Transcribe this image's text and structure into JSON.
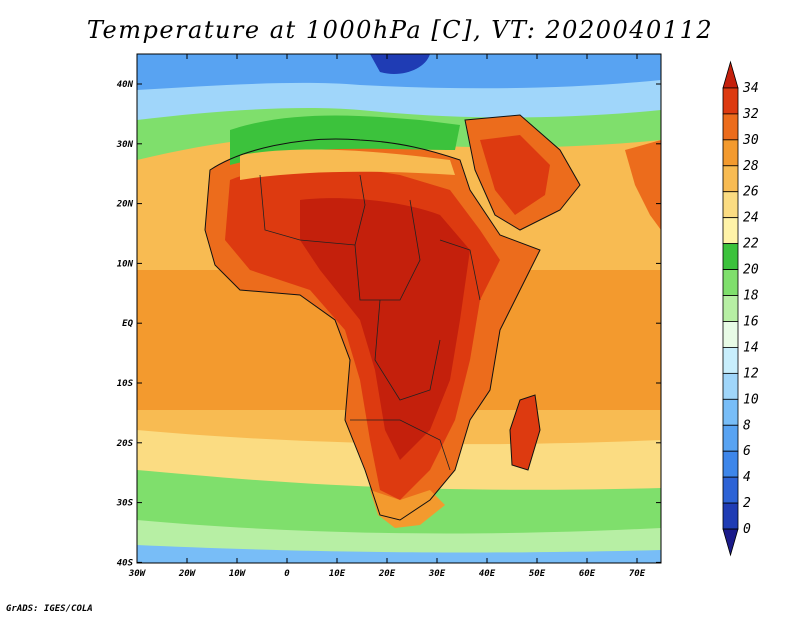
{
  "title": "Temperature at 1000hPa [C], VT: 2020040112",
  "credit": "GrADS: IGES/COLA",
  "map": {
    "lat_labels": [
      "40N",
      "30N",
      "20N",
      "10N",
      "EQ",
      "10S",
      "20S",
      "30S",
      "40S"
    ],
    "lon_labels": [
      "30W",
      "20W",
      "10W",
      "0",
      "10E",
      "20E",
      "30E",
      "40E",
      "50E",
      "60E",
      "70E"
    ]
  },
  "colorbar": {
    "levels": [
      "0",
      "2",
      "4",
      "6",
      "8",
      "10",
      "12",
      "14",
      "16",
      "18",
      "20",
      "22",
      "24",
      "26",
      "28",
      "30",
      "32",
      "34"
    ],
    "colors": [
      "#1b1b8a",
      "#1f3cb4",
      "#2d63d6",
      "#3d86ea",
      "#58a3f2",
      "#78bdf7",
      "#a0d6fa",
      "#c8eefc",
      "#e8fbe6",
      "#b7efa4",
      "#7fdf6c",
      "#3cc23c",
      "#fff3a8",
      "#fbdc82",
      "#f8bb52",
      "#f39a2e",
      "#ec6c1c",
      "#dd3a10",
      "#c4200c"
    ]
  }
}
